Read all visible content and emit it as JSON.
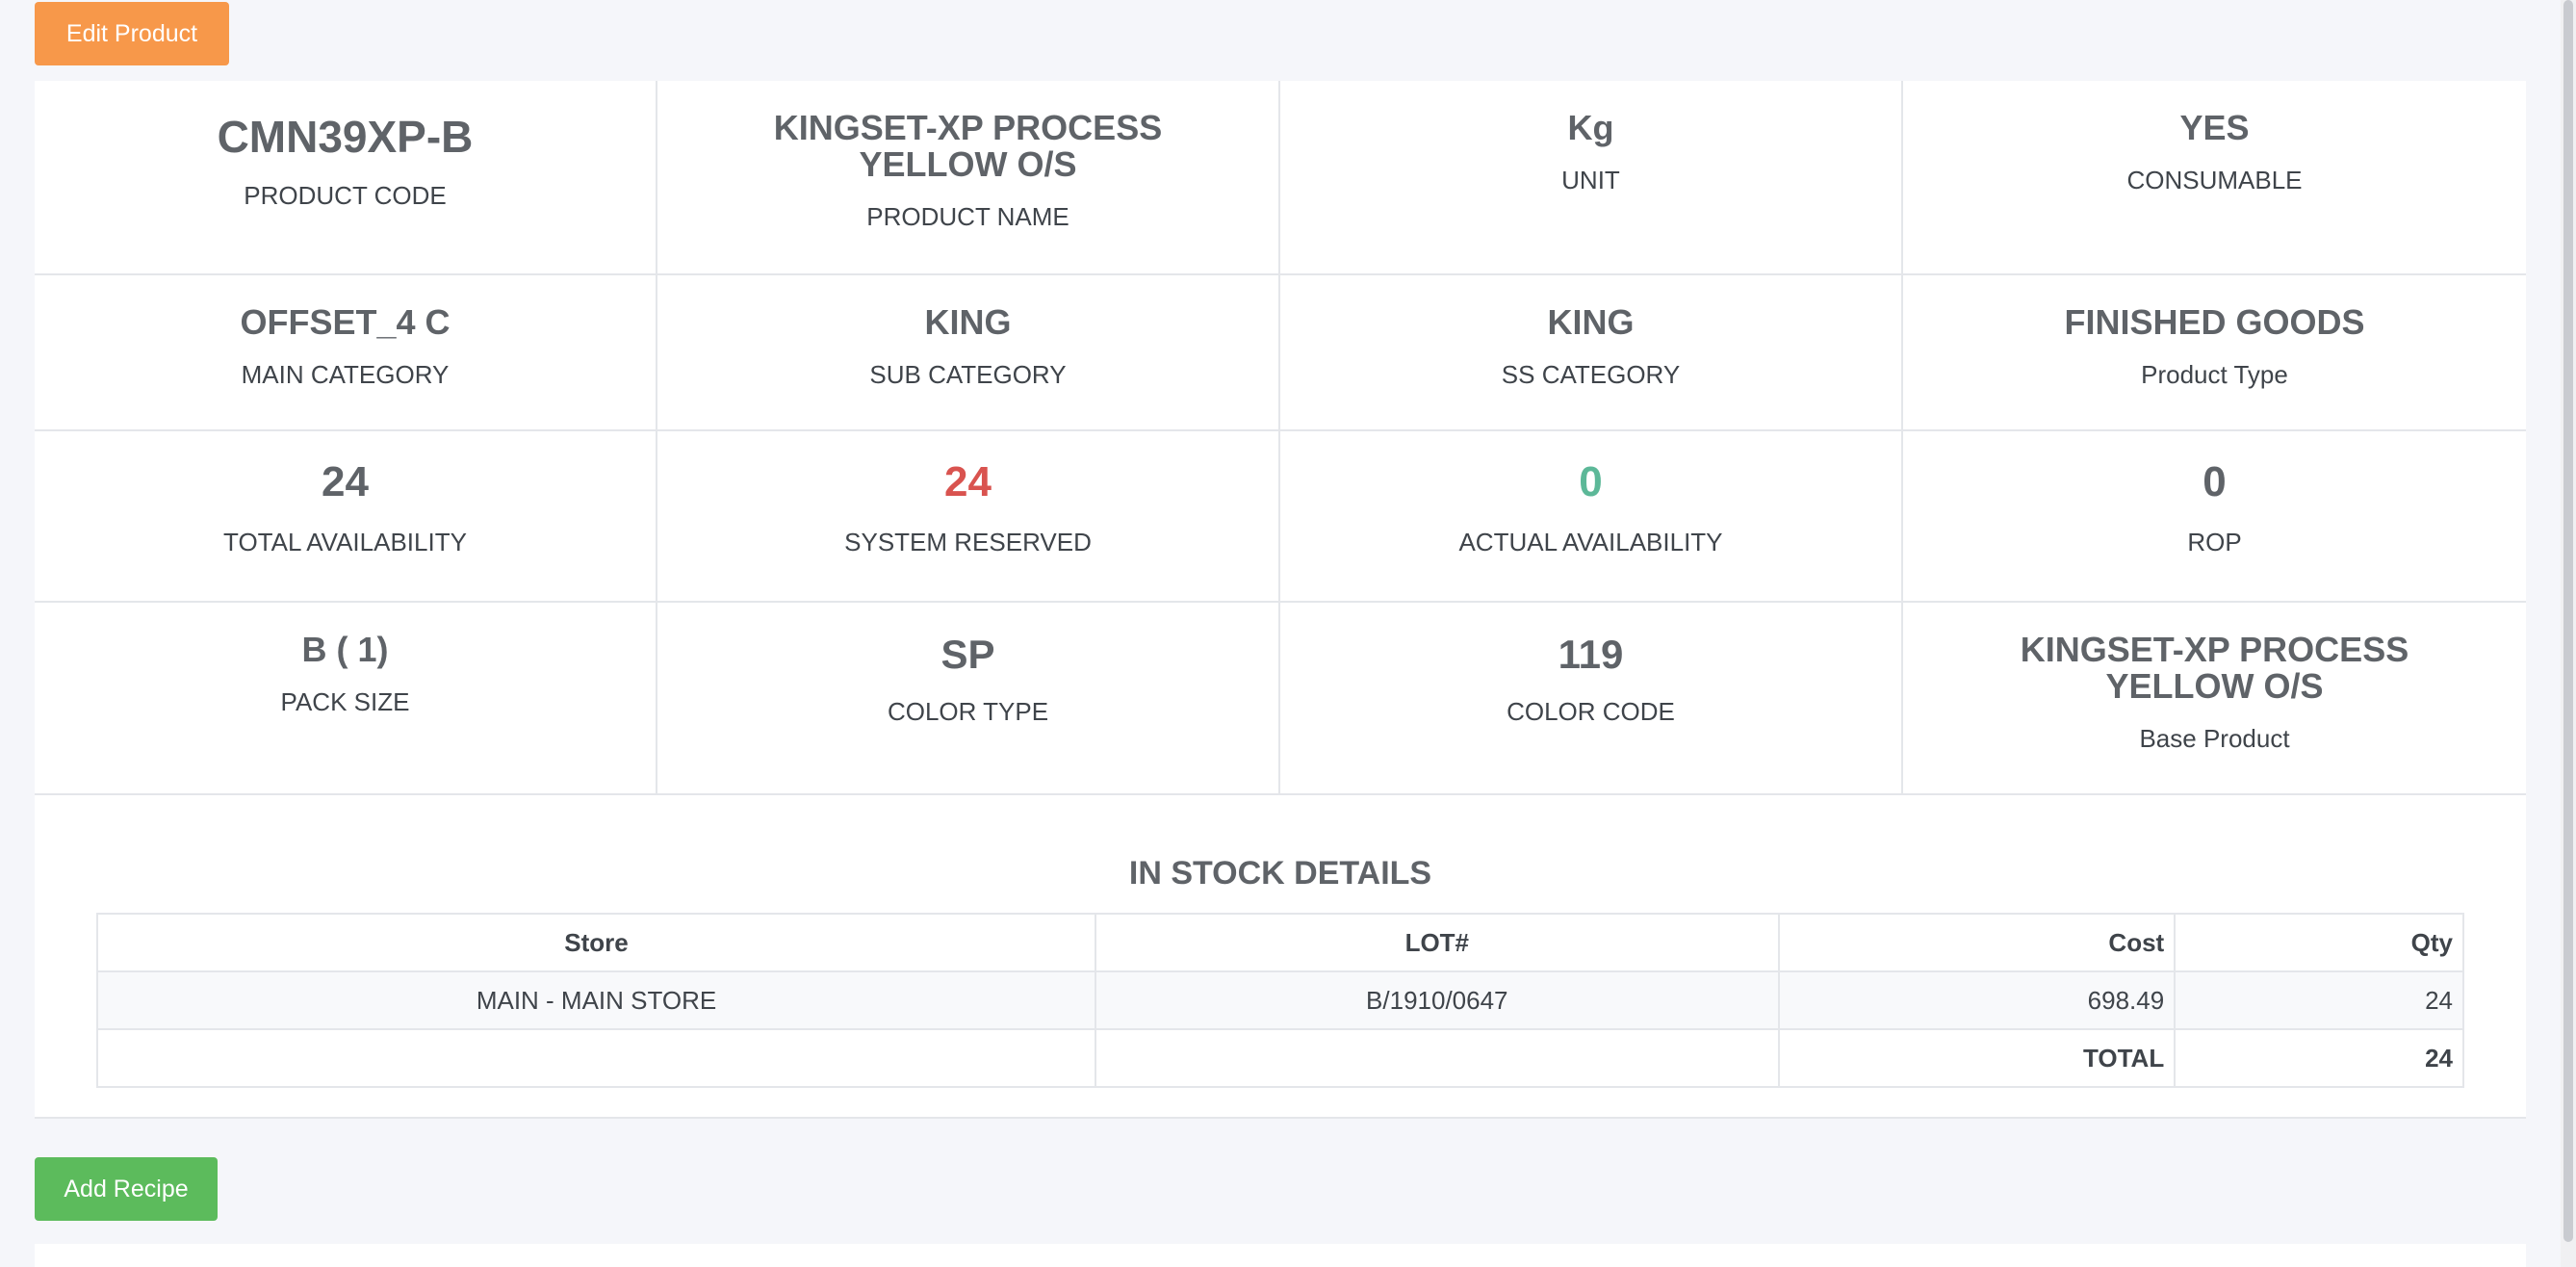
{
  "buttons": {
    "edit_product": "Edit Product",
    "add_recipe": "Add Recipe"
  },
  "product": {
    "code": {
      "value": "CMN39XP-B",
      "label": "PRODUCT CODE"
    },
    "name": {
      "value": "KINGSET-XP PROCESS YELLOW O/S",
      "label": "PRODUCT NAME"
    },
    "unit": {
      "value": "Kg",
      "label": "UNIT"
    },
    "consumable": {
      "value": "YES",
      "label": "CONSUMABLE"
    },
    "main_category": {
      "value": "OFFSET_4 C",
      "label": "MAIN CATEGORY"
    },
    "sub_category": {
      "value": "KING",
      "label": "SUB CATEGORY"
    },
    "ss_category": {
      "value": "KING",
      "label": "SS CATEGORY"
    },
    "product_type": {
      "value": "FINISHED GOODS",
      "label": "Product Type"
    },
    "total_availability": {
      "value": "24",
      "label": "TOTAL AVAILABILITY"
    },
    "system_reserved": {
      "value": "24",
      "label": "SYSTEM RESERVED"
    },
    "actual_availability": {
      "value": "0",
      "label": "ACTUAL AVAILABILITY"
    },
    "rop": {
      "value": "0",
      "label": "ROP"
    },
    "pack_size": {
      "value": "B ( 1)",
      "label": "PACK SIZE"
    },
    "color_type": {
      "value": "SP",
      "label": "COLOR TYPE"
    },
    "color_code": {
      "value": "119",
      "label": "COLOR CODE"
    },
    "base_product": {
      "value": "KINGSET-XP PROCESS YELLOW O/S",
      "label": "Base Product"
    }
  },
  "stock": {
    "title": "IN STOCK DETAILS",
    "headers": {
      "store": "Store",
      "lot": "LOT#",
      "cost": "Cost",
      "qty": "Qty"
    },
    "rows": [
      {
        "store": "MAIN - MAIN STORE",
        "lot": "B/1910/0647",
        "cost": "698.49",
        "qty": "24"
      }
    ],
    "total": {
      "label": "TOTAL",
      "qty": "24"
    }
  },
  "colors": {
    "edit_button": "#f7984a",
    "add_recipe_button": "#5cbb5c",
    "reserved": "#d9534f",
    "actual_availability": "#5cb898"
  }
}
